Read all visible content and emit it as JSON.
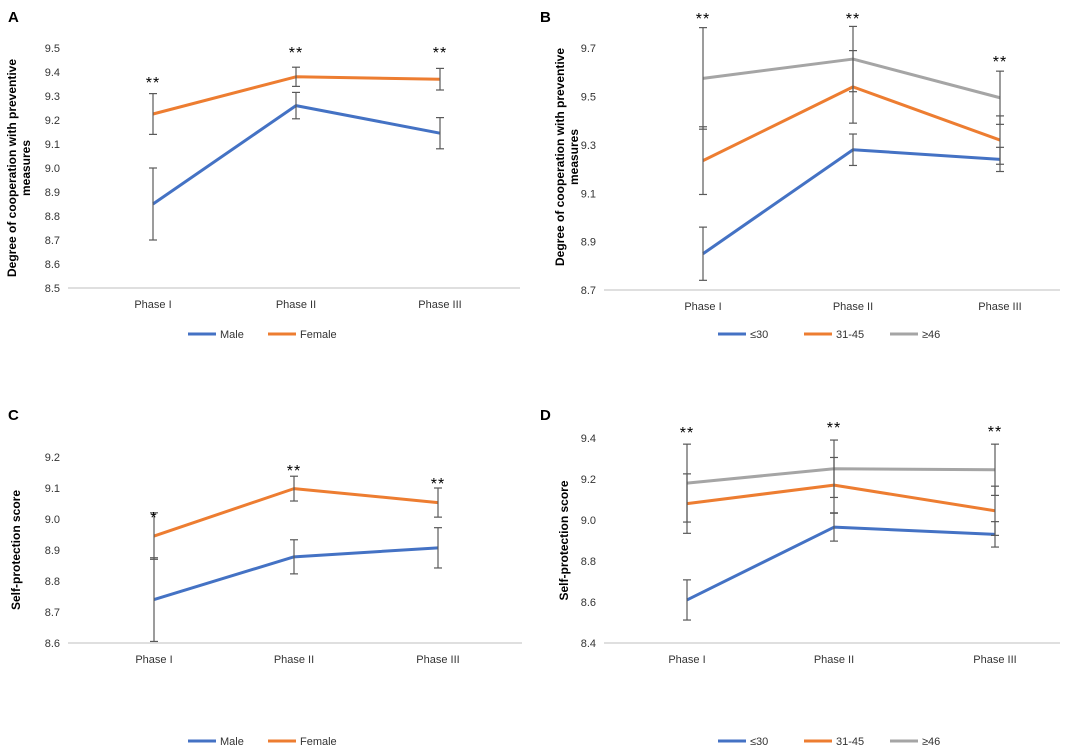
{
  "colors": {
    "blue": "#4472C4",
    "orange": "#ED7D31",
    "gray": "#A5A5A5",
    "axis": "#bfbfbf",
    "errbar": "#595959"
  },
  "chart_data": [
    {
      "panel": "A",
      "type": "line",
      "categories": [
        "Phase I",
        "Phase II",
        "Phase III"
      ],
      "ylabel": [
        "Degree of cooperation with preventive",
        "measures"
      ],
      "ylim": [
        8.5,
        9.5
      ],
      "yticks": [
        "8.5",
        "8.6",
        "8.7",
        "8.8",
        "8.9",
        "9.0",
        "9.1",
        "9.2",
        "9.3",
        "9.4",
        "9.5"
      ],
      "significance": [
        "**",
        "**",
        "**"
      ],
      "series": [
        {
          "name": "Male",
          "color": "#4472C4",
          "values": [
            8.85,
            9.26,
            9.145
          ],
          "err": [
            0.15,
            0.055,
            0.065
          ]
        },
        {
          "name": "Female",
          "color": "#ED7D31",
          "values": [
            9.225,
            9.38,
            9.37
          ],
          "err": [
            0.085,
            0.04,
            0.045
          ]
        }
      ]
    },
    {
      "panel": "B",
      "type": "line",
      "categories": [
        "Phase I",
        "Phase II",
        "Phase III"
      ],
      "ylabel": [
        "Degree of cooperation with preventive",
        "measures"
      ],
      "ylim": [
        8.7,
        9.8
      ],
      "yticks": [
        "8.7",
        "8.9",
        "9.1",
        "9.3",
        "9.5",
        "9.7"
      ],
      "significance": [
        "**",
        "**",
        "**"
      ],
      "series": [
        {
          "name": "≤30",
          "color": "#4472C4",
          "values": [
            8.85,
            9.28,
            9.24
          ],
          "err": [
            0.11,
            0.065,
            0.05
          ]
        },
        {
          "name": "31-45",
          "color": "#ED7D31",
          "values": [
            9.235,
            9.54,
            9.32
          ],
          "err": [
            0.14,
            0.15,
            0.1
          ]
        },
        {
          "name": "≥46",
          "color": "#A5A5A5",
          "values": [
            9.575,
            9.655,
            9.495
          ],
          "err": [
            0.21,
            0.135,
            0.11
          ]
        }
      ]
    },
    {
      "panel": "C",
      "type": "line",
      "categories": [
        "Phase I",
        "Phase II",
        "Phase III"
      ],
      "ylabel": [
        "Self-protection score"
      ],
      "ylim": [
        8.6,
        9.2
      ],
      "yticks": [
        "8.6",
        "8.7",
        "8.8",
        "8.9",
        "9.0",
        "9.1",
        "9.2"
      ],
      "significance": [
        "*",
        "**",
        "**"
      ],
      "series": [
        {
          "name": "Male",
          "color": "#4472C4",
          "values": [
            8.74,
            8.878,
            8.907
          ],
          "err": [
            0.135,
            0.055,
            0.065
          ]
        },
        {
          "name": "Female",
          "color": "#ED7D31",
          "values": [
            8.945,
            9.098,
            9.053
          ],
          "err": [
            0.075,
            0.04,
            0.047
          ]
        }
      ]
    },
    {
      "panel": "D",
      "type": "line",
      "categories": [
        "Phase I",
        "Phase II",
        "Phase III"
      ],
      "ylabel": [
        "Self-protection score"
      ],
      "ylim": [
        8.4,
        9.4
      ],
      "yticks": [
        "8.4",
        "8.6",
        "8.8",
        "9.0",
        "9.2",
        "9.4"
      ],
      "significance": [
        "**",
        "**",
        "**"
      ],
      "series": [
        {
          "name": "≤30",
          "color": "#4472C4",
          "values": [
            8.61,
            8.965,
            8.93
          ],
          "err": [
            0.098,
            0.068,
            0.062
          ]
        },
        {
          "name": "31-45",
          "color": "#ED7D31",
          "values": [
            9.08,
            9.17,
            9.045
          ],
          "err": [
            0.145,
            0.135,
            0.12
          ]
        },
        {
          "name": "≥46",
          "color": "#A5A5A5",
          "values": [
            9.18,
            9.25,
            9.245
          ],
          "err": [
            0.19,
            0.14,
            0.125
          ]
        }
      ]
    }
  ]
}
